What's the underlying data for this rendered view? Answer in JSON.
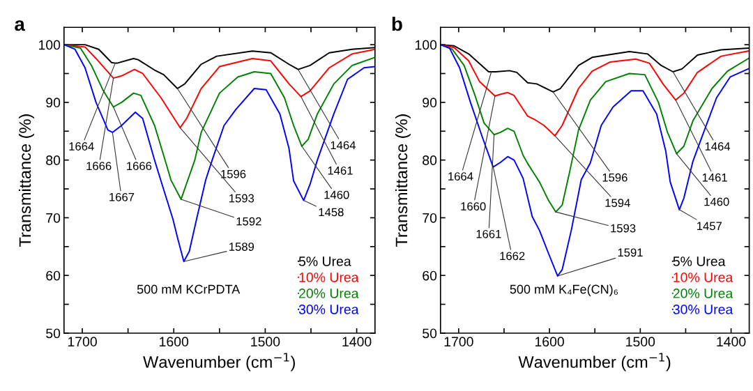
{
  "chart_data": [
    {
      "type": "line",
      "title": "a",
      "xlabel": "Wavenumber (cm$^{−1}$)",
      "ylabel": "Transmittance (%)",
      "xlim": [
        1720,
        1380
      ],
      "ylim": [
        50,
        103
      ],
      "xticks": [
        1700,
        {
          "value": 1650,
          "label": null
        },
        1600,
        {
          "value": 1550,
          "label": null
        },
        1500,
        {
          "value": 1450,
          "label": null
        },
        1400
      ],
      "yticks": [
        50,
        {
          "value": 55,
          "label": null
        },
        60,
        {
          "value": 65,
          "label": null
        },
        70,
        {
          "value": 75,
          "label": null
        },
        80,
        {
          "value": 85,
          "label": null
        },
        90,
        {
          "value": 95,
          "label": null
        },
        100
      ],
      "grid": false,
      "legend": "bottom right",
      "marker": "none",
      "line_style": "solid",
      "series": [
        {
          "name": "5% Urea",
          "color": "#000000",
          "x": [
            1720,
            1697,
            1682,
            1668,
            1664,
            1662,
            1644,
            1639,
            1621,
            1611,
            1596,
            1588,
            1570,
            1553,
            1514,
            1494,
            1474,
            1464,
            1451,
            1430,
            1405,
            1380
          ],
          "values": [
            100,
            100,
            99.2,
            96.9,
            96.8,
            96.8,
            97.6,
            97.4,
            95.6,
            94.8,
            92.4,
            93.2,
            96.6,
            98,
            98.9,
            98.6,
            96.6,
            95.7,
            96.4,
            98.6,
            99.2,
            99.5
          ]
        },
        {
          "name": "10% Urea",
          "color": "#ff0000",
          "x": [
            1720,
            1697,
            1685,
            1666,
            1657,
            1643,
            1634,
            1614,
            1593,
            1586,
            1570,
            1550,
            1514,
            1494,
            1474,
            1461,
            1451,
            1430,
            1405,
            1380
          ],
          "values": [
            100,
            99.6,
            97.6,
            94.2,
            94.6,
            95.7,
            95,
            90.8,
            85.6,
            87.2,
            92.4,
            96.2,
            97.6,
            97.2,
            93.2,
            91,
            92,
            96,
            98.4,
            99.2
          ]
        },
        {
          "name": "20% Urea",
          "color": "#008000",
          "x": [
            1720,
            1702,
            1690,
            1677,
            1666,
            1657,
            1644,
            1636,
            1621,
            1608,
            1603,
            1592,
            1577,
            1570,
            1550,
            1530,
            1512,
            1494,
            1479,
            1469,
            1460,
            1453,
            1443,
            1425,
            1405,
            1380
          ],
          "values": [
            100,
            99.4,
            96.4,
            92,
            89.2,
            90,
            91.6,
            91.2,
            86,
            79.2,
            76.5,
            73.2,
            80,
            84.8,
            91.6,
            94.4,
            95.3,
            95,
            90.8,
            86,
            82.4,
            83.6,
            88,
            93.2,
            96.4,
            97.8
          ]
        },
        {
          "name": "30% Urea",
          "color": "#0000ff",
          "x": [
            1720,
            1708,
            1697,
            1685,
            1672,
            1667,
            1657,
            1642,
            1634,
            1621,
            1614,
            1601,
            1596,
            1589,
            1583,
            1575,
            1565,
            1558,
            1545,
            1532,
            1512,
            1499,
            1484,
            1474,
            1469,
            1458,
            1451,
            1443,
            1425,
            1410,
            1392,
            1380
          ],
          "values": [
            100,
            99.2,
            96,
            90,
            85.2,
            84.8,
            86,
            88.3,
            87.2,
            80,
            76.4,
            69.8,
            66.6,
            62.4,
            64.2,
            69.8,
            76.6,
            80,
            86,
            88.8,
            92.4,
            92.2,
            88,
            82,
            76.4,
            73,
            75.8,
            80,
            88,
            94,
            96,
            96.2
          ]
        }
      ],
      "annotations": [
        {
          "text": "1664",
          "x": 1664,
          "y": 96.8
        },
        {
          "text": "1666",
          "x": 1666,
          "y": 94.2
        },
        {
          "text": "1666",
          "x": 1666,
          "y": 89.2
        },
        {
          "text": "1667",
          "x": 1667,
          "y": 84.8
        },
        {
          "text": "1596",
          "x": 1596,
          "y": 92.4
        },
        {
          "text": "1593",
          "x": 1593,
          "y": 85.6
        },
        {
          "text": "1592",
          "x": 1592,
          "y": 73.2
        },
        {
          "text": "1589",
          "x": 1589,
          "y": 62.4
        },
        {
          "text": "1464",
          "x": 1464,
          "y": 95.7
        },
        {
          "text": "1461",
          "x": 1461,
          "y": 91
        },
        {
          "text": "1460",
          "x": 1460,
          "y": 82.4
        },
        {
          "text": "1458",
          "x": 1458,
          "y": 73
        },
        "500 mM KCrPDTA"
      ]
    },
    {
      "type": "line",
      "title": "b",
      "xlabel": "Wavenumber (cm$^{−1}$)",
      "ylabel": "Transmittance (%)",
      "xlim": [
        1720,
        1380
      ],
      "ylim": [
        50,
        103
      ],
      "xticks": [
        1700,
        {
          "value": 1650,
          "label": null
        },
        1600,
        {
          "value": 1550,
          "label": null
        },
        1500,
        {
          "value": 1450,
          "label": null
        },
        1400
      ],
      "yticks": [
        50,
        {
          "value": 55,
          "label": null
        },
        60,
        {
          "value": 65,
          "label": null
        },
        70,
        {
          "value": 75,
          "label": null
        },
        80,
        {
          "value": 85,
          "label": null
        },
        90,
        {
          "value": 95,
          "label": null
        },
        100
      ],
      "grid": false,
      "legend": "bottom right",
      "marker": "none",
      "line_style": "solid",
      "series": [
        {
          "name": "5% Urea",
          "color": "#000000",
          "x": [
            1720,
            1705,
            1689,
            1667,
            1664,
            1659,
            1644,
            1636,
            1624,
            1614,
            1596,
            1588,
            1568,
            1553,
            1512,
            1492,
            1477,
            1464,
            1454,
            1437,
            1411,
            1381
          ],
          "values": [
            100,
            99.8,
            98.4,
            95.3,
            95.3,
            95.3,
            95.5,
            95.2,
            93.4,
            93.2,
            91.8,
            92.4,
            96.4,
            97.8,
            98.8,
            98.4,
            96.4,
            95.3,
            95.8,
            98.2,
            99.1,
            99.4
          ]
        },
        {
          "name": "10% Urea",
          "color": "#ff0000",
          "x": [
            1720,
            1705,
            1689,
            1677,
            1660,
            1654,
            1646,
            1639,
            1624,
            1616,
            1606,
            1594,
            1586,
            1568,
            1553,
            1533,
            1505,
            1490,
            1475,
            1461,
            1452,
            1437,
            1411,
            1381
          ],
          "values": [
            100,
            99.5,
            97.2,
            93.6,
            91.1,
            91.4,
            91.7,
            91.2,
            87.6,
            87,
            86,
            84.2,
            86,
            92.4,
            95.4,
            97,
            97.5,
            96.8,
            93.2,
            90.4,
            91.6,
            95.2,
            98,
            98.9
          ]
        },
        {
          "name": "20% Urea",
          "color": "#008000",
          "x": [
            1720,
            1707,
            1694,
            1682,
            1672,
            1661,
            1654,
            1646,
            1639,
            1629,
            1624,
            1611,
            1601,
            1593,
            1586,
            1578,
            1568,
            1555,
            1538,
            1512,
            1495,
            1480,
            1470,
            1460,
            1452,
            1442,
            1421,
            1404,
            1381
          ],
          "values": [
            100,
            99.2,
            96.4,
            91.2,
            86.4,
            84.4,
            84.8,
            85.5,
            85,
            80.8,
            79.4,
            76.2,
            73,
            71,
            72.2,
            77.8,
            85.2,
            90.4,
            93.6,
            95,
            94.8,
            90,
            84.8,
            81.1,
            82.4,
            86.8,
            92.4,
            95.4,
            97.6
          ]
        },
        {
          "name": "30% Urea",
          "color": "#0000ff",
          "x": [
            1720,
            1710,
            1699,
            1687,
            1674,
            1662,
            1654,
            1646,
            1639,
            1632,
            1629,
            1619,
            1611,
            1601,
            1591,
            1586,
            1576,
            1565,
            1555,
            1543,
            1530,
            1510,
            1497,
            1482,
            1472,
            1467,
            1457,
            1452,
            1442,
            1434,
            1416,
            1401,
            1381
          ],
          "values": [
            100,
            99.4,
            96,
            90,
            84,
            78.8,
            79.6,
            80.6,
            80,
            77.8,
            76.8,
            70.2,
            67.8,
            63.8,
            59.9,
            61,
            67.8,
            76.6,
            79.5,
            86,
            89.2,
            92,
            92,
            88,
            81.6,
            76.2,
            71.4,
            73.4,
            79.8,
            83.2,
            90.8,
            94.4,
            95.8
          ]
        }
      ],
      "annotations": [
        {
          "text": "1664",
          "x": 1664,
          "y": 95.3
        },
        {
          "text": "1660",
          "x": 1660,
          "y": 91.1
        },
        {
          "text": "1661",
          "x": 1661,
          "y": 84.4
        },
        {
          "text": "1662",
          "x": 1662,
          "y": 78.8
        },
        {
          "text": "1596",
          "x": 1596,
          "y": 91.8
        },
        {
          "text": "1594",
          "x": 1594,
          "y": 84.2
        },
        {
          "text": "1593",
          "x": 1593,
          "y": 71
        },
        {
          "text": "1591",
          "x": 1591,
          "y": 59.9
        },
        {
          "text": "1464",
          "x": 1464,
          "y": 95.3
        },
        {
          "text": "1461",
          "x": 1461,
          "y": 90.4
        },
        {
          "text": "1460",
          "x": 1460,
          "y": 81.1
        },
        {
          "text": "1457",
          "x": 1457,
          "y": 71.4
        },
        "500 mM K₄Fe(CN)₆"
      ]
    }
  ]
}
